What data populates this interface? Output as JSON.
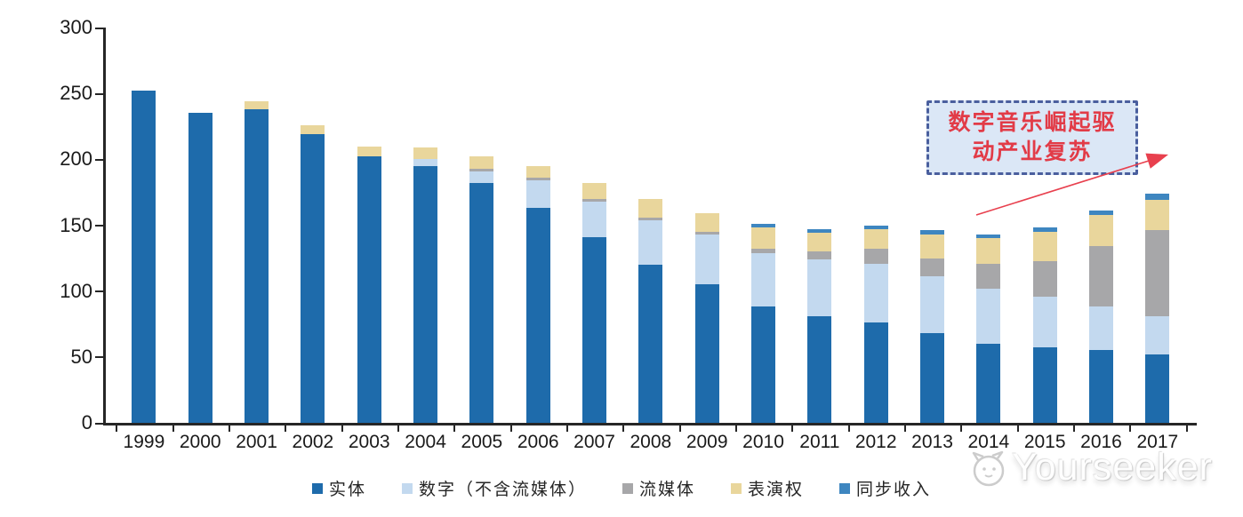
{
  "chart_data": {
    "type": "bar",
    "stacked": true,
    "title": "",
    "xlabel": "",
    "ylabel": "",
    "categories": [
      "1999",
      "2000",
      "2001",
      "2002",
      "2003",
      "2004",
      "2005",
      "2006",
      "2007",
      "2008",
      "2009",
      "2010",
      "2011",
      "2012",
      "2013",
      "2014",
      "2015",
      "2016",
      "2017"
    ],
    "series": [
      {
        "name": "实体",
        "color": "#1e6bab",
        "values": [
          252,
          235,
          238,
          219,
          202,
          195,
          182,
          163,
          141,
          120,
          105,
          88,
          81,
          76,
          68,
          60,
          57,
          55,
          52
        ]
      },
      {
        "name": "数字（不含流媒体）",
        "color": "#c3d9ef",
        "values": [
          0,
          0,
          0,
          0,
          0,
          5,
          9,
          21,
          27,
          34,
          38,
          41,
          43,
          45,
          43,
          42,
          39,
          33,
          29
        ]
      },
      {
        "name": "流媒体",
        "color": "#a7a7a9",
        "values": [
          0,
          0,
          0,
          0,
          0,
          0,
          2,
          2,
          2,
          2,
          2,
          3,
          6,
          11,
          14,
          19,
          27,
          46,
          65
        ]
      },
      {
        "name": "表演权",
        "color": "#e9d69c",
        "values": [
          0,
          0,
          6,
          7,
          8,
          9,
          9,
          9,
          12,
          14,
          14,
          16,
          14,
          15,
          18,
          19,
          22,
          24,
          23
        ]
      },
      {
        "name": "同步收入",
        "color": "#3e86c0",
        "values": [
          0,
          0,
          0,
          0,
          0,
          0,
          0,
          0,
          0,
          0,
          0,
          3,
          3,
          3,
          3,
          3,
          3,
          3,
          5
        ]
      }
    ],
    "ylim": [
      0,
      300
    ],
    "yticks": [
      0,
      50,
      100,
      150,
      200,
      250,
      300
    ],
    "grid": false,
    "legend_position": "bottom"
  },
  "annotation": {
    "line1": "数字音乐崛起驱",
    "line2": "动产业复苏",
    "text_color": "#e23b47",
    "border_color": "#4a5f9e",
    "fill_color": "#dbe7f6",
    "arrow_color": "#e8404e"
  },
  "watermark": {
    "text": "Yourseeker"
  }
}
